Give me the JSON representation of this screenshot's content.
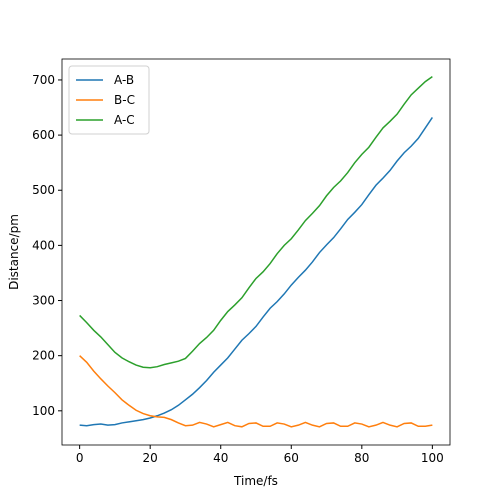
{
  "chart_data": {
    "type": "line",
    "xlabel": "Time/fs",
    "ylabel": "Distance/pm",
    "x": [
      0,
      2,
      4,
      6,
      8,
      10,
      12,
      14,
      16,
      18,
      20,
      22,
      24,
      26,
      28,
      30,
      32,
      34,
      36,
      38,
      40,
      42,
      44,
      46,
      48,
      50,
      52,
      54,
      56,
      58,
      60,
      62,
      64,
      66,
      68,
      70,
      72,
      74,
      76,
      78,
      80,
      82,
      84,
      86,
      88,
      90,
      92,
      94,
      96,
      98,
      100
    ],
    "series": [
      {
        "name": "A-B",
        "color": "#1f77b4",
        "values": [
          74,
          73,
          75,
          76,
          74,
          75,
          78,
          80,
          82,
          84,
          87,
          91,
          96,
          102,
          110,
          120,
          130,
          142,
          155,
          170,
          183,
          196,
          212,
          228,
          240,
          253,
          270,
          286,
          298,
          312,
          328,
          342,
          355,
          370,
          387,
          401,
          414,
          430,
          447,
          460,
          474,
          492,
          509,
          522,
          536,
          553,
          568,
          580,
          594,
          613,
          632
        ]
      },
      {
        "name": "B-C",
        "color": "#ff7f0e",
        "values": [
          200,
          188,
          172,
          158,
          145,
          133,
          120,
          110,
          101,
          95,
          91,
          89,
          88,
          84,
          78,
          73,
          74,
          79,
          76,
          71,
          75,
          79,
          73,
          71,
          77,
          78,
          72,
          72,
          78,
          76,
          71,
          74,
          79,
          74,
          71,
          77,
          78,
          72,
          72,
          78,
          76,
          71,
          74,
          79,
          74,
          71,
          77,
          78,
          72,
          72,
          74
        ]
      },
      {
        "name": "A-C",
        "color": "#2ca02c",
        "values": [
          273,
          260,
          246,
          234,
          220,
          206,
          196,
          189,
          183,
          179,
          178,
          180,
          184,
          187,
          190,
          195,
          208,
          222,
          233,
          246,
          264,
          280,
          292,
          305,
          323,
          340,
          352,
          367,
          385,
          400,
          412,
          428,
          445,
          458,
          472,
          490,
          505,
          517,
          532,
          550,
          565,
          578,
          596,
          613,
          625,
          638,
          656,
          673,
          685,
          697,
          706
        ]
      }
    ],
    "xlim": [
      -5,
      105
    ],
    "xticks": [
      0,
      20,
      40,
      60,
      80,
      100
    ],
    "ylim": [
      38,
      738
    ],
    "yticks": [
      100,
      200,
      300,
      400,
      500,
      600,
      700
    ],
    "grid": false,
    "legend": "upper left"
  }
}
